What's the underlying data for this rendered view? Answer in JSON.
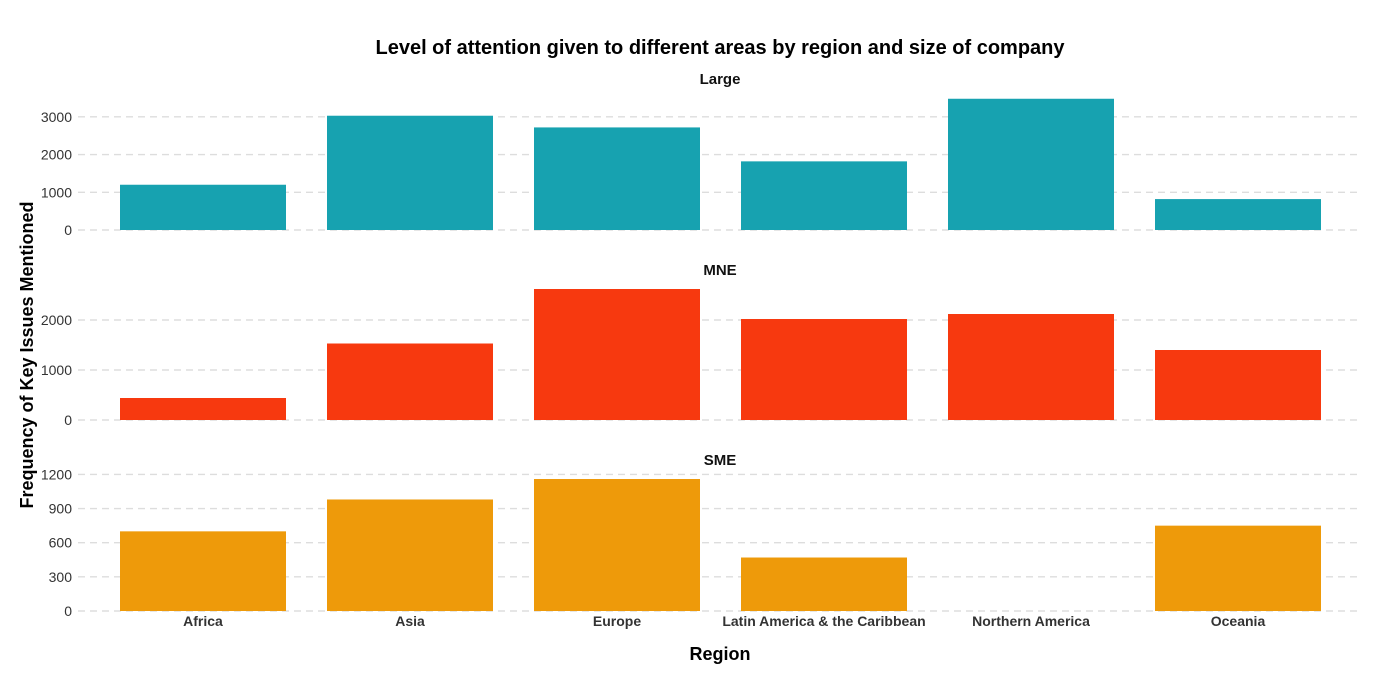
{
  "chart_data": {
    "type": "bar",
    "title": "Level of attention given to different areas by region and size of company",
    "xlabel": "Region",
    "ylabel": "Frequency of Key Issues Mentioned",
    "categories": [
      "Africa",
      "Asia",
      "Europe",
      "Latin America & the Caribbean",
      "Northern America",
      "Oceania"
    ],
    "grid": true,
    "facets": [
      {
        "name": "Large",
        "color": "#17A2B0",
        "ticks": [
          0,
          1000,
          2000,
          3000
        ],
        "ylim": [
          0,
          3500
        ],
        "values": [
          1200,
          3030,
          2720,
          1820,
          3480,
          820
        ]
      },
      {
        "name": "MNE",
        "color": "#F7390F",
        "ticks": [
          0,
          1000,
          2000
        ],
        "ylim": [
          0,
          2620
        ],
        "values": [
          440,
          1530,
          2620,
          2020,
          2120,
          1400
        ]
      },
      {
        "name": "SME",
        "color": "#EE9A0A",
        "ticks": [
          0,
          300,
          600,
          900,
          1200
        ],
        "ylim": [
          0,
          1160
        ],
        "values": [
          700,
          980,
          1160,
          470,
          null,
          750
        ]
      }
    ]
  }
}
